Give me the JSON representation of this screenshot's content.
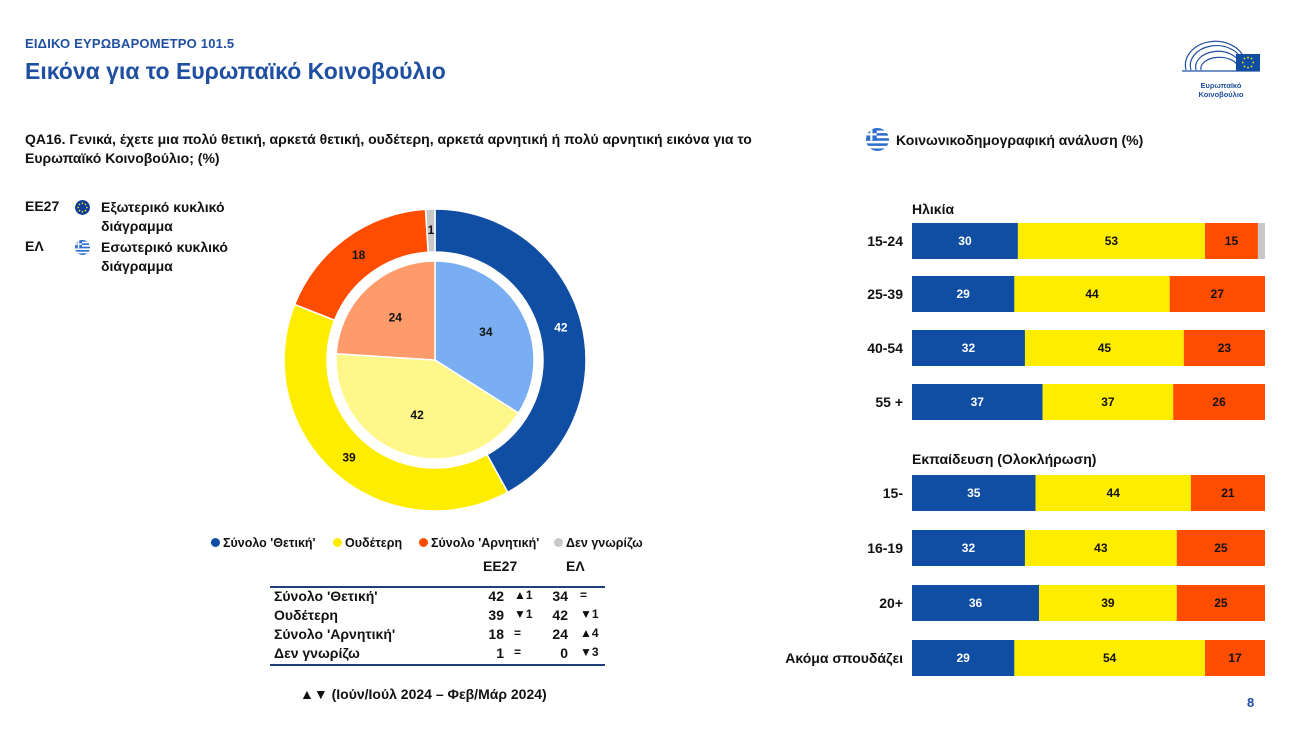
{
  "header": {
    "eyebrow": "ΕΙΔΙΚΟ ΕΥΡΩΒΑΡΟΜΕΤΡΟ 101.5",
    "title": "Εικόνα για το Ευρωπαϊκό Κοινοβούλιο",
    "logo_text": "Ευρωπαϊκό Κοινοβούλιο"
  },
  "question": "QA16. Γενικά, έχετε μια πολύ θετική, αρκετά θετική, ουδέτερη, αρκετά αρνητική ή πολύ αρνητική εικόνα για το Ευρωπαϊκό Κοινοβούλιο; (%)",
  "legend_top": [
    {
      "code": "ΕΕ27",
      "flag_icon": "eu-flag-icon",
      "text": "Εξωτερικό κυκλικό διάγραμμα"
    },
    {
      "code": "ΕΛ",
      "flag_icon": "greek-flag-icon",
      "text": "Εσωτερικό κυκλικό διάγραμμα"
    }
  ],
  "legend_bottom": [
    {
      "label": "Σύνολο 'Θετική'",
      "color": "#0f4ea3"
    },
    {
      "label": "Ουδέτερη",
      "color": "#ffed00"
    },
    {
      "label": "Σύνολο 'Αρνητική'",
      "color": "#ff4d00"
    },
    {
      "label": "Δεν γνωρίζω",
      "color": "#c8c8c8"
    }
  ],
  "summary_table": {
    "col_headers": [
      "ΕΕ27",
      "ΕΛ"
    ],
    "rows": [
      {
        "label": "Σύνολο 'Θετική'",
        "eu": "42",
        "eu_change": "▲1",
        "gr": "34",
        "gr_change": "="
      },
      {
        "label": "Ουδέτερη",
        "eu": "39",
        "eu_change": "▼1",
        "gr": "42",
        "gr_change": "▼1"
      },
      {
        "label": "Σύνολο 'Αρνητική'",
        "eu": "18",
        "eu_change": "=",
        "gr": "24",
        "gr_change": "▲4"
      },
      {
        "label": "Δεν γνωρίζω",
        "eu": "1",
        "eu_change": "=",
        "gr": "0",
        "gr_change": "▼3"
      }
    ]
  },
  "footnote": "▲▼ (Ιούν/Ιούλ 2024 – Φεβ/Μάρ 2024)",
  "right_title": "Κοινωνικοδημογραφική ανάλυση (%)",
  "page_number": "8",
  "colors": {
    "positive": "#0f4ea3",
    "neutral": "#ffed00",
    "negative": "#ff4d00",
    "dontknow": "#c8c8c8",
    "positive_inner": "#7aaef2",
    "neutral_inner": "#fff78a",
    "negative_inner": "#ff9a6a",
    "brand": "#1f4fa0"
  },
  "chart_data": [
    {
      "type": "pie",
      "variant": "donut-outer",
      "legend_ref": "ΕΕ27",
      "categories": [
        "Σύνολο 'Θετική'",
        "Ουδέτερη",
        "Σύνολο 'Αρνητική'",
        "Δεν γνωρίζω"
      ],
      "values": [
        42,
        39,
        18,
        1
      ]
    },
    {
      "type": "pie",
      "variant": "inner",
      "legend_ref": "ΕΛ",
      "categories": [
        "Σύνολο 'Θετική'",
        "Ουδέτερη",
        "Σύνολο 'Αρνητική'",
        "Δεν γνωρίζω"
      ],
      "values": [
        34,
        42,
        24,
        0
      ]
    },
    {
      "type": "bar",
      "orientation": "horizontal",
      "stacked": true,
      "series_order": [
        "Σύνολο 'Θετική'",
        "Ουδέτερη",
        "Σύνολο 'Αρνητική'",
        "Δεν γνωρίζω"
      ],
      "groups": [
        {
          "title": "Ηλικία",
          "rows": [
            {
              "label": "15-24",
              "values": [
                30,
                53,
                15,
                2
              ]
            },
            {
              "label": "25-39",
              "values": [
                29,
                44,
                27,
                0
              ]
            },
            {
              "label": "40-54",
              "values": [
                32,
                45,
                23,
                0
              ]
            },
            {
              "label": "55 +",
              "values": [
                37,
                37,
                26,
                0
              ]
            }
          ]
        },
        {
          "title": "Εκπαίδευση (Ολοκλήρωση)",
          "rows": [
            {
              "label": "15-",
              "values": [
                35,
                44,
                21,
                0
              ]
            },
            {
              "label": "16-19",
              "values": [
                32,
                43,
                25,
                0
              ]
            },
            {
              "label": "20+",
              "values": [
                36,
                39,
                25,
                0
              ]
            },
            {
              "label": "Ακόμα σπουδάζει",
              "values": [
                29,
                54,
                17,
                0
              ]
            }
          ]
        }
      ],
      "xlim": [
        0,
        100
      ]
    }
  ]
}
